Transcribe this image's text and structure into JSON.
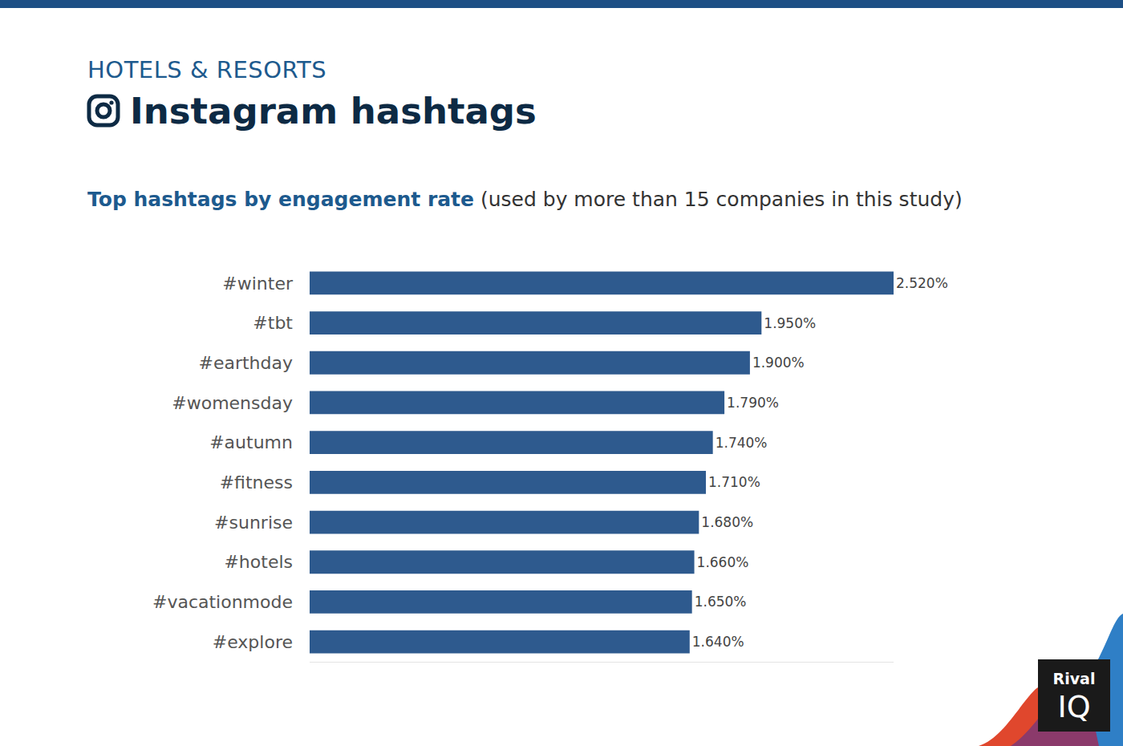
{
  "chart_data": {
    "type": "bar",
    "orientation": "horizontal",
    "title": "Instagram hashtags",
    "subtitle": "Top hashtags by engagement rate",
    "annotations": [
      "HOTELS & RESORTS",
      "(used by more than 15 companies in this study)",
      "Rival",
      "IQ"
    ],
    "categories": [
      "#winter",
      "#tbt",
      "#earthday",
      "#womensday",
      "#autumn",
      "#fitness",
      "#sunrise",
      "#hotels",
      "#vacationmode",
      "#explore"
    ],
    "values": [
      2.52,
      1.95,
      1.9,
      1.79,
      1.74,
      1.71,
      1.68,
      1.66,
      1.65,
      1.64
    ],
    "value_labels": [
      "2.520%",
      "1.950%",
      "1.900%",
      "1.790%",
      "1.740%",
      "1.710%",
      "1.680%",
      "1.660%",
      "1.650%",
      "1.640%"
    ],
    "color": "#2e5a8e",
    "xlim": [
      0,
      2.52
    ],
    "xticks": [],
    "grid": false,
    "data_labels": true,
    "tick_labels": "y"
  }
}
